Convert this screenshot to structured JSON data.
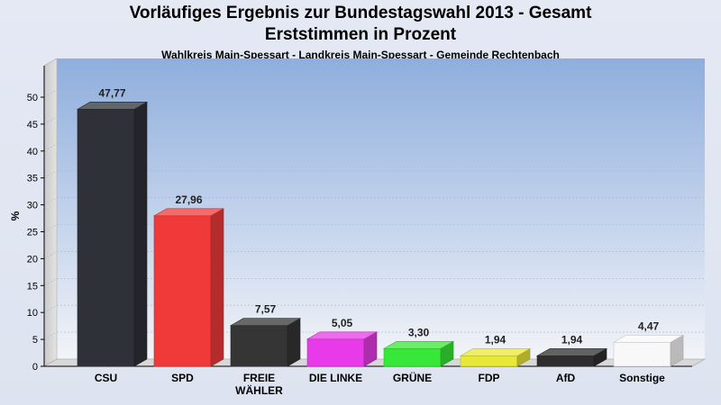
{
  "header": {
    "title_line1": "Vorläufiges Ergebnis zur Bundestagswahl 2013 - Gesamt",
    "title_line2": "Erststimmen in Prozent",
    "subtitle": "Wahlkreis Main-Spessart - Landkreis Main-Spessart - Gemeinde Rechtenbach"
  },
  "chart_data": {
    "type": "bar",
    "ylabel": "%",
    "ylim": [
      0,
      50
    ],
    "yticks": [
      0,
      5,
      10,
      15,
      20,
      25,
      30,
      35,
      40,
      45,
      50
    ],
    "grid": true,
    "categories": [
      [
        "CSU"
      ],
      [
        "SPD"
      ],
      [
        "FREIE",
        "WÄHLER"
      ],
      [
        "DIE LINKE"
      ],
      [
        "GRÜNE"
      ],
      [
        "FDP"
      ],
      [
        "AfD"
      ],
      [
        "Sonstige"
      ]
    ],
    "values": [
      47.77,
      27.96,
      7.57,
      5.05,
      3.3,
      1.94,
      1.94,
      4.47
    ],
    "value_labels": [
      "47,77",
      "27,96",
      "7,57",
      "5,05",
      "3,30",
      "1,94",
      "1,94",
      "4,47"
    ],
    "colors": [
      "#2e3138",
      "#f03a3a",
      "#353535",
      "#e83ae8",
      "#38e838",
      "#e8e838",
      "#2e2e2e",
      "#f8f8f8"
    ]
  }
}
